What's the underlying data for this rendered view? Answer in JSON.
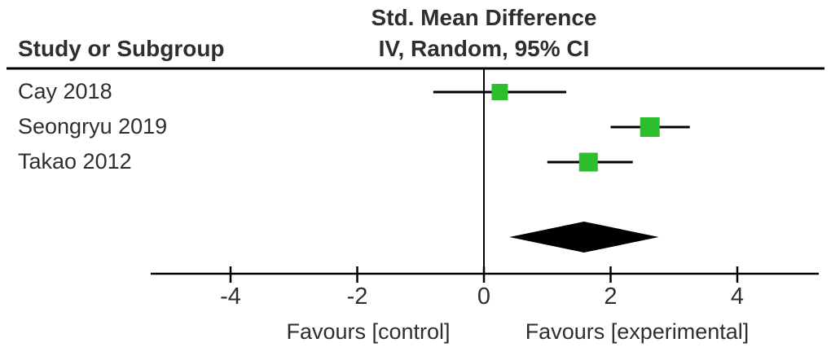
{
  "chart_data": {
    "type": "forest",
    "title": "Std. Mean Difference",
    "subtitle": "IV, Random, 95% CI",
    "left_header": "Study or Subgroup",
    "xlabel_left": "Favours [control]",
    "xlabel_right": "Favours [experimental]",
    "axis": {
      "ticks": [
        -4,
        -2,
        0,
        2,
        4
      ],
      "zero_line": 0,
      "min": -5.2,
      "max": 5.2
    },
    "studies": [
      {
        "label": "Cay 2018",
        "estimate": 0.25,
        "ci_low": -0.8,
        "ci_high": 1.3,
        "marker_size": 20
      },
      {
        "label": "Seongryu 2019",
        "estimate": 2.62,
        "ci_low": 2.0,
        "ci_high": 3.25,
        "marker_size": 24
      },
      {
        "label": "Takao 2012",
        "estimate": 1.65,
        "ci_low": 1.0,
        "ci_high": 2.35,
        "marker_size": 23
      }
    ],
    "pooled": {
      "estimate": 1.58,
      "ci_low": 0.4,
      "ci_high": 2.76
    },
    "colors": {
      "marker": "#2cbe2c",
      "line": "#000000",
      "text": "#2e2e2e"
    }
  }
}
